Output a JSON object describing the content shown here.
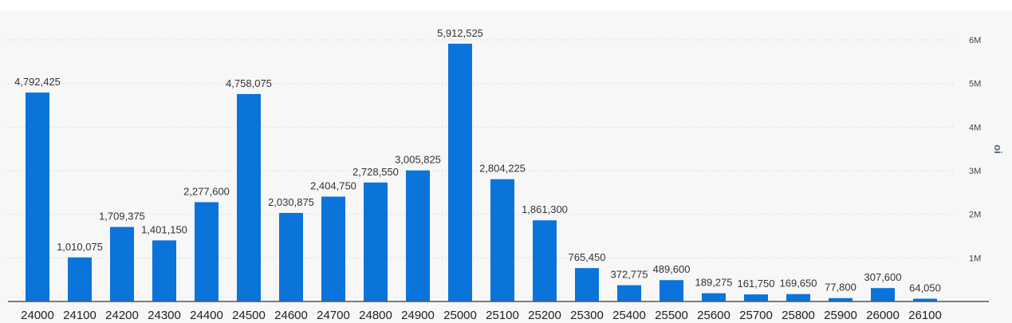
{
  "chart_data": {
    "type": "bar",
    "title": "",
    "xlabel": "",
    "ylabel": "oi",
    "ylim": [
      0,
      6000000
    ],
    "yticks": [
      1000000,
      2000000,
      3000000,
      4000000,
      5000000,
      6000000
    ],
    "ytick_labels": [
      "1M",
      "2M",
      "3M",
      "4M",
      "5M",
      "6M"
    ],
    "grid": true,
    "legend": "none",
    "bar_color": "#0a74da",
    "categories": [
      "24000",
      "24100",
      "24200",
      "24300",
      "24400",
      "24500",
      "24600",
      "24700",
      "24800",
      "24900",
      "25000",
      "25100",
      "25200",
      "25300",
      "25400",
      "25500",
      "25600",
      "25700",
      "25800",
      "25900",
      "26000",
      "26100"
    ],
    "values": [
      4792425,
      1010075,
      1709375,
      1401150,
      2277600,
      4758075,
      2030875,
      2404750,
      2728550,
      3005825,
      5912525,
      2804225,
      1861300,
      765450,
      372775,
      489600,
      189275,
      161750,
      169650,
      77800,
      307600,
      64050
    ],
    "value_labels": [
      "4,792,425",
      "1,010,075",
      "1,709,375",
      "1,401,150",
      "2,277,600",
      "4,758,075",
      "2,030,875",
      "2,404,750",
      "2,728,550",
      "3,005,825",
      "5,912,525",
      "2,804,225",
      "1,861,300",
      "765,450",
      "372,775",
      "489,600",
      "189,275",
      "161,750",
      "169,650",
      "77,800",
      "307,600",
      "64,050"
    ]
  }
}
